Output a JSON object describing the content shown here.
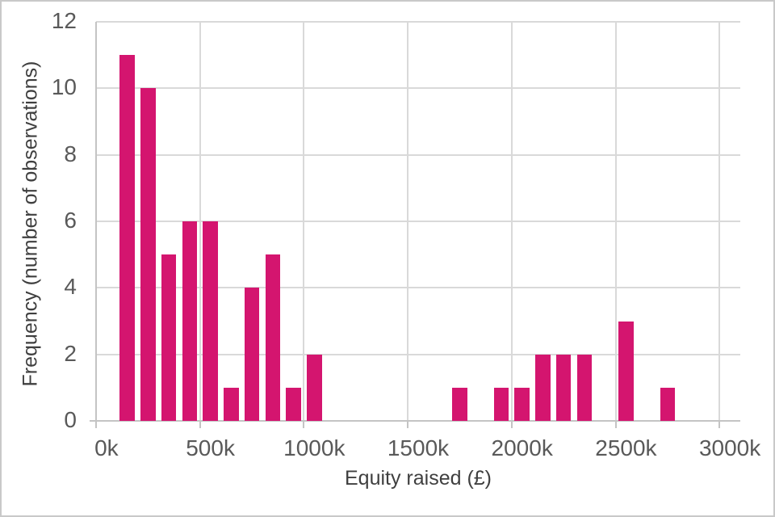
{
  "chart_data": {
    "type": "bar",
    "subtype": "histogram",
    "title": "",
    "xlabel": "Equity raised (£)",
    "ylabel": "Frequency (number of observations)",
    "legend": false,
    "grid": true,
    "xlim_k": [
      0,
      3100
    ],
    "ylim": [
      0,
      12
    ],
    "bin_width_k": 100,
    "x_tick_values_k": [
      0,
      500,
      1000,
      1500,
      2000,
      2500,
      3000
    ],
    "x_tick_labels": [
      "0k",
      "500k",
      "1000k",
      "1500k",
      "2000k",
      "2500k",
      "3000k"
    ],
    "y_tick_values": [
      0,
      2,
      4,
      6,
      8,
      10,
      12
    ],
    "y_tick_labels": [
      "0",
      "2",
      "4",
      "6",
      "8",
      "10",
      "12"
    ],
    "bins": [
      {
        "start_k": 100,
        "end_k": 200,
        "count": 11
      },
      {
        "start_k": 200,
        "end_k": 300,
        "count": 10
      },
      {
        "start_k": 300,
        "end_k": 400,
        "count": 5
      },
      {
        "start_k": 400,
        "end_k": 500,
        "count": 6
      },
      {
        "start_k": 500,
        "end_k": 600,
        "count": 6
      },
      {
        "start_k": 600,
        "end_k": 700,
        "count": 1
      },
      {
        "start_k": 700,
        "end_k": 800,
        "count": 4
      },
      {
        "start_k": 800,
        "end_k": 900,
        "count": 5
      },
      {
        "start_k": 900,
        "end_k": 1000,
        "count": 1
      },
      {
        "start_k": 1000,
        "end_k": 1100,
        "count": 2
      },
      {
        "start_k": 1700,
        "end_k": 1800,
        "count": 1
      },
      {
        "start_k": 1900,
        "end_k": 2000,
        "count": 1
      },
      {
        "start_k": 2000,
        "end_k": 2100,
        "count": 1
      },
      {
        "start_k": 2100,
        "end_k": 2200,
        "count": 2
      },
      {
        "start_k": 2200,
        "end_k": 2300,
        "count": 2
      },
      {
        "start_k": 2300,
        "end_k": 2400,
        "count": 2
      },
      {
        "start_k": 2500,
        "end_k": 2600,
        "count": 3
      },
      {
        "start_k": 2700,
        "end_k": 2800,
        "count": 1
      }
    ],
    "colors": {
      "bar": "#d4156f",
      "gridline": "#d9d9d9",
      "axis_line": "#c4c4c4",
      "tick_label": "#595959",
      "axis_title": "#3f3f3f",
      "outer_border": "#c9c9c9"
    }
  }
}
